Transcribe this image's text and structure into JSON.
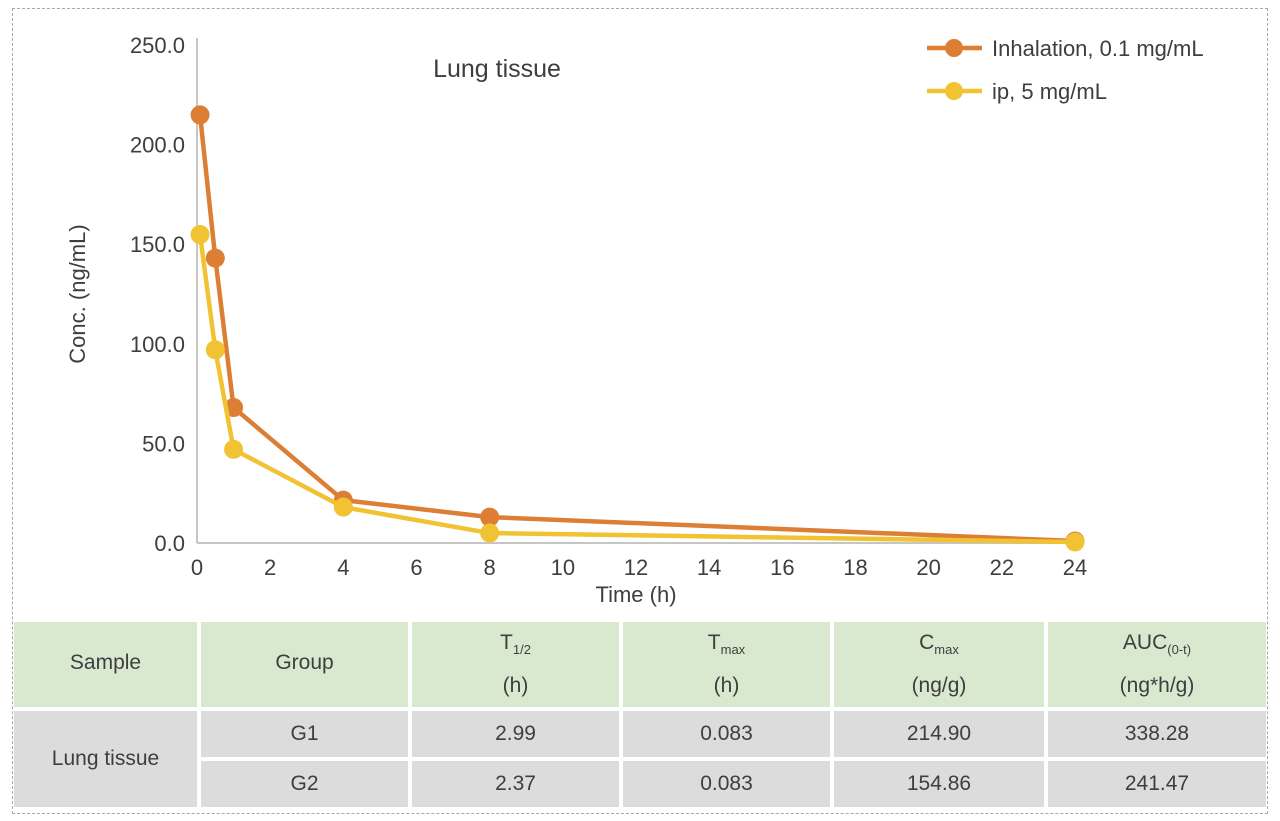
{
  "frame": {
    "border_color": "#a8a8a8"
  },
  "chart_data": {
    "type": "line",
    "title": "Lung tissue",
    "xlabel": "Time (h)",
    "ylabel": "Conc. (ng/mL)",
    "xlim": [
      0,
      24
    ],
    "ylim": [
      0,
      250
    ],
    "x_ticks": [
      0,
      2,
      4,
      6,
      8,
      10,
      12,
      14,
      16,
      18,
      20,
      22,
      24
    ],
    "y_ticks": [
      0,
      50,
      100,
      150,
      200,
      250
    ],
    "y_tick_decimals": 1,
    "grid": false,
    "legend_position": "top-right",
    "axis_color": "#c6c6c6",
    "text_color": "#3e3e3e",
    "series": [
      {
        "name": "Inhalation, 0.1 mg/mL",
        "color": "#dd7e35",
        "x": [
          0.083,
          0.5,
          1,
          4,
          8,
          24
        ],
        "y": [
          214.9,
          143,
          68,
          21.5,
          13,
          1
        ]
      },
      {
        "name": "ip, 5 mg/mL",
        "color": "#f1c232",
        "x": [
          0.083,
          0.5,
          1,
          4,
          8,
          24
        ],
        "y": [
          154.86,
          97,
          47,
          18,
          5,
          0.5
        ]
      }
    ]
  },
  "table": {
    "header": [
      {
        "label": "Sample",
        "sub": "",
        "unit": ""
      },
      {
        "label": "Group",
        "sub": "",
        "unit": ""
      },
      {
        "label": "T",
        "sub": "1/2",
        "unit": "(h)"
      },
      {
        "label": "T",
        "sub": "max",
        "unit": "(h)"
      },
      {
        "label": "C",
        "sub": "max",
        "unit": "(ng/g)"
      },
      {
        "label": "AUC",
        "sub": "(0-t)",
        "unit": "(ng*h/g)"
      }
    ],
    "sample_label": "Lung tissue",
    "rows": [
      {
        "group": "G1",
        "t_half": "2.99",
        "t_max": "0.083",
        "c_max": "214.90",
        "auc": "338.28"
      },
      {
        "group": "G2",
        "t_half": "2.37",
        "t_max": "0.083",
        "c_max": "154.86",
        "auc": "241.47"
      }
    ],
    "colors": {
      "header_bg": "#d8e9d0",
      "body_bg": "#dcdcdc"
    }
  }
}
